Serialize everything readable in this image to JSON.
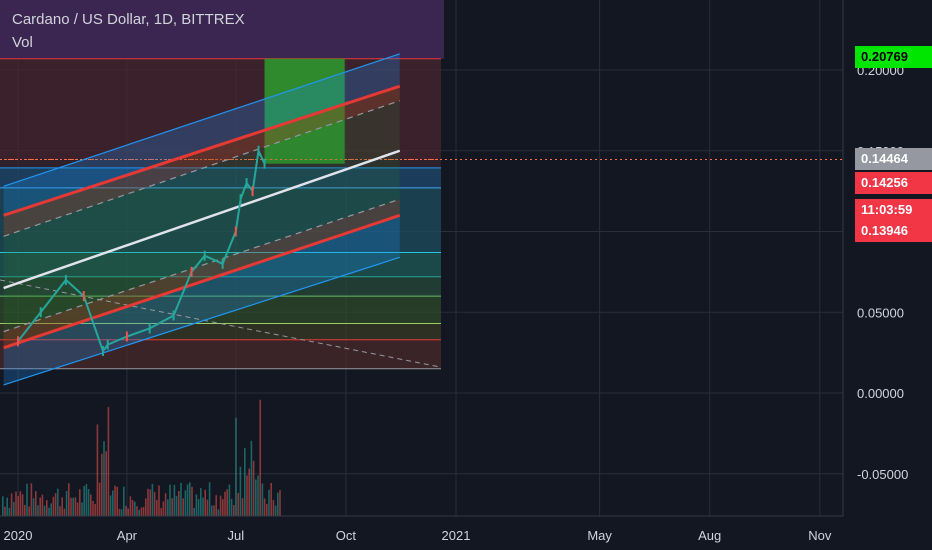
{
  "header": {
    "symbol_line": "Cardano / US Dollar, 1D, BITTREX",
    "volume_label": "Vol"
  },
  "price_badges": [
    {
      "label": "0.20769",
      "bg": "#00e600",
      "fg": "#000000"
    },
    {
      "label": "0.14464",
      "bg": "#9598a1",
      "fg": "#ffffff"
    },
    {
      "label": "0.14256",
      "bg": "#f23645",
      "fg": "#ffffff"
    },
    {
      "label": "11:03:59",
      "bg": "#f23645",
      "fg": "#ffffff"
    },
    {
      "label": "0.13946",
      "bg": "#f23645",
      "fg": "#ffffff"
    }
  ],
  "chart_data": {
    "type": "line",
    "title": "Cardano / US Dollar, 1D, BITTREX",
    "x_tick_labels": [
      "2020",
      "Apr",
      "Jul",
      "Oct",
      "2021",
      "May",
      "Aug",
      "Nov"
    ],
    "y_tick_labels": [
      "0.20000",
      "0.15000",
      "0.05000",
      "0.00000",
      "-0.05000"
    ],
    "ylim": [
      -0.075,
      0.215
    ],
    "grid": true,
    "colors": {
      "background": "#131722",
      "up": "#26a69a",
      "down": "#ef5350",
      "channel_mid": "#e0e3eb",
      "channel_red": "#e53935",
      "channel_blue": "#2196f3",
      "target_zone": "#2e9b2e"
    },
    "price_series": {
      "name": "ADA/USD",
      "x": [
        "2020-01-01",
        "2020-01-20",
        "2020-02-10",
        "2020-02-25",
        "2020-03-12",
        "2020-03-16",
        "2020-04-01",
        "2020-04-20",
        "2020-05-10",
        "2020-05-25",
        "2020-06-05",
        "2020-06-20",
        "2020-07-01",
        "2020-07-05",
        "2020-07-10",
        "2020-07-15",
        "2020-07-20",
        "2020-07-25"
      ],
      "y": [
        0.032,
        0.05,
        0.07,
        0.06,
        0.026,
        0.03,
        0.035,
        0.04,
        0.048,
        0.075,
        0.085,
        0.08,
        0.1,
        0.12,
        0.13,
        0.125,
        0.15,
        0.142
      ]
    },
    "channel_lines": [
      {
        "name": "",
        "color": "#e0e3eb",
        "style": "solid",
        "x": [
          "2019-12-20",
          "2020-11-15"
        ],
        "y": [
          0.065,
          0.15
        ]
      },
      {
        "name": "",
        "color": "#e53935",
        "style": "solid",
        "x": [
          "2019-12-20",
          "2020-11-15"
        ],
        "y": [
          0.11,
          0.19
        ]
      },
      {
        "name": "",
        "color": "#e53935",
        "style": "solid",
        "x": [
          "2019-12-20",
          "2020-11-15"
        ],
        "y": [
          0.028,
          0.11
        ]
      },
      {
        "name": "",
        "color": "#2196f3",
        "style": "solid",
        "x": [
          "2019-12-20",
          "2020-11-15"
        ],
        "y": [
          0.128,
          0.21
        ]
      },
      {
        "name": "",
        "color": "#2196f3",
        "style": "solid",
        "x": [
          "2019-12-20",
          "2020-11-15"
        ],
        "y": [
          0.005,
          0.084
        ]
      },
      {
        "name": "",
        "color": "#9598a1",
        "style": "dashed",
        "x": [
          "2019-12-20",
          "2020-11-15"
        ],
        "y": [
          0.097,
          0.181
        ]
      },
      {
        "name": "",
        "color": "#9598a1",
        "style": "dashed",
        "x": [
          "2019-12-20",
          "2020-11-15"
        ],
        "y": [
          0.038,
          0.12
        ]
      }
    ],
    "fib_levels": [
      0.207,
      0.1446,
      0.1394,
      0.127,
      0.087,
      0.072,
      0.06,
      0.043,
      0.033,
      0.015
    ],
    "target_zone": {
      "x": [
        "2020-07-25",
        "2020-09-30"
      ],
      "y": [
        0.142,
        0.207
      ]
    },
    "volume_tick_labels_shown": false
  }
}
